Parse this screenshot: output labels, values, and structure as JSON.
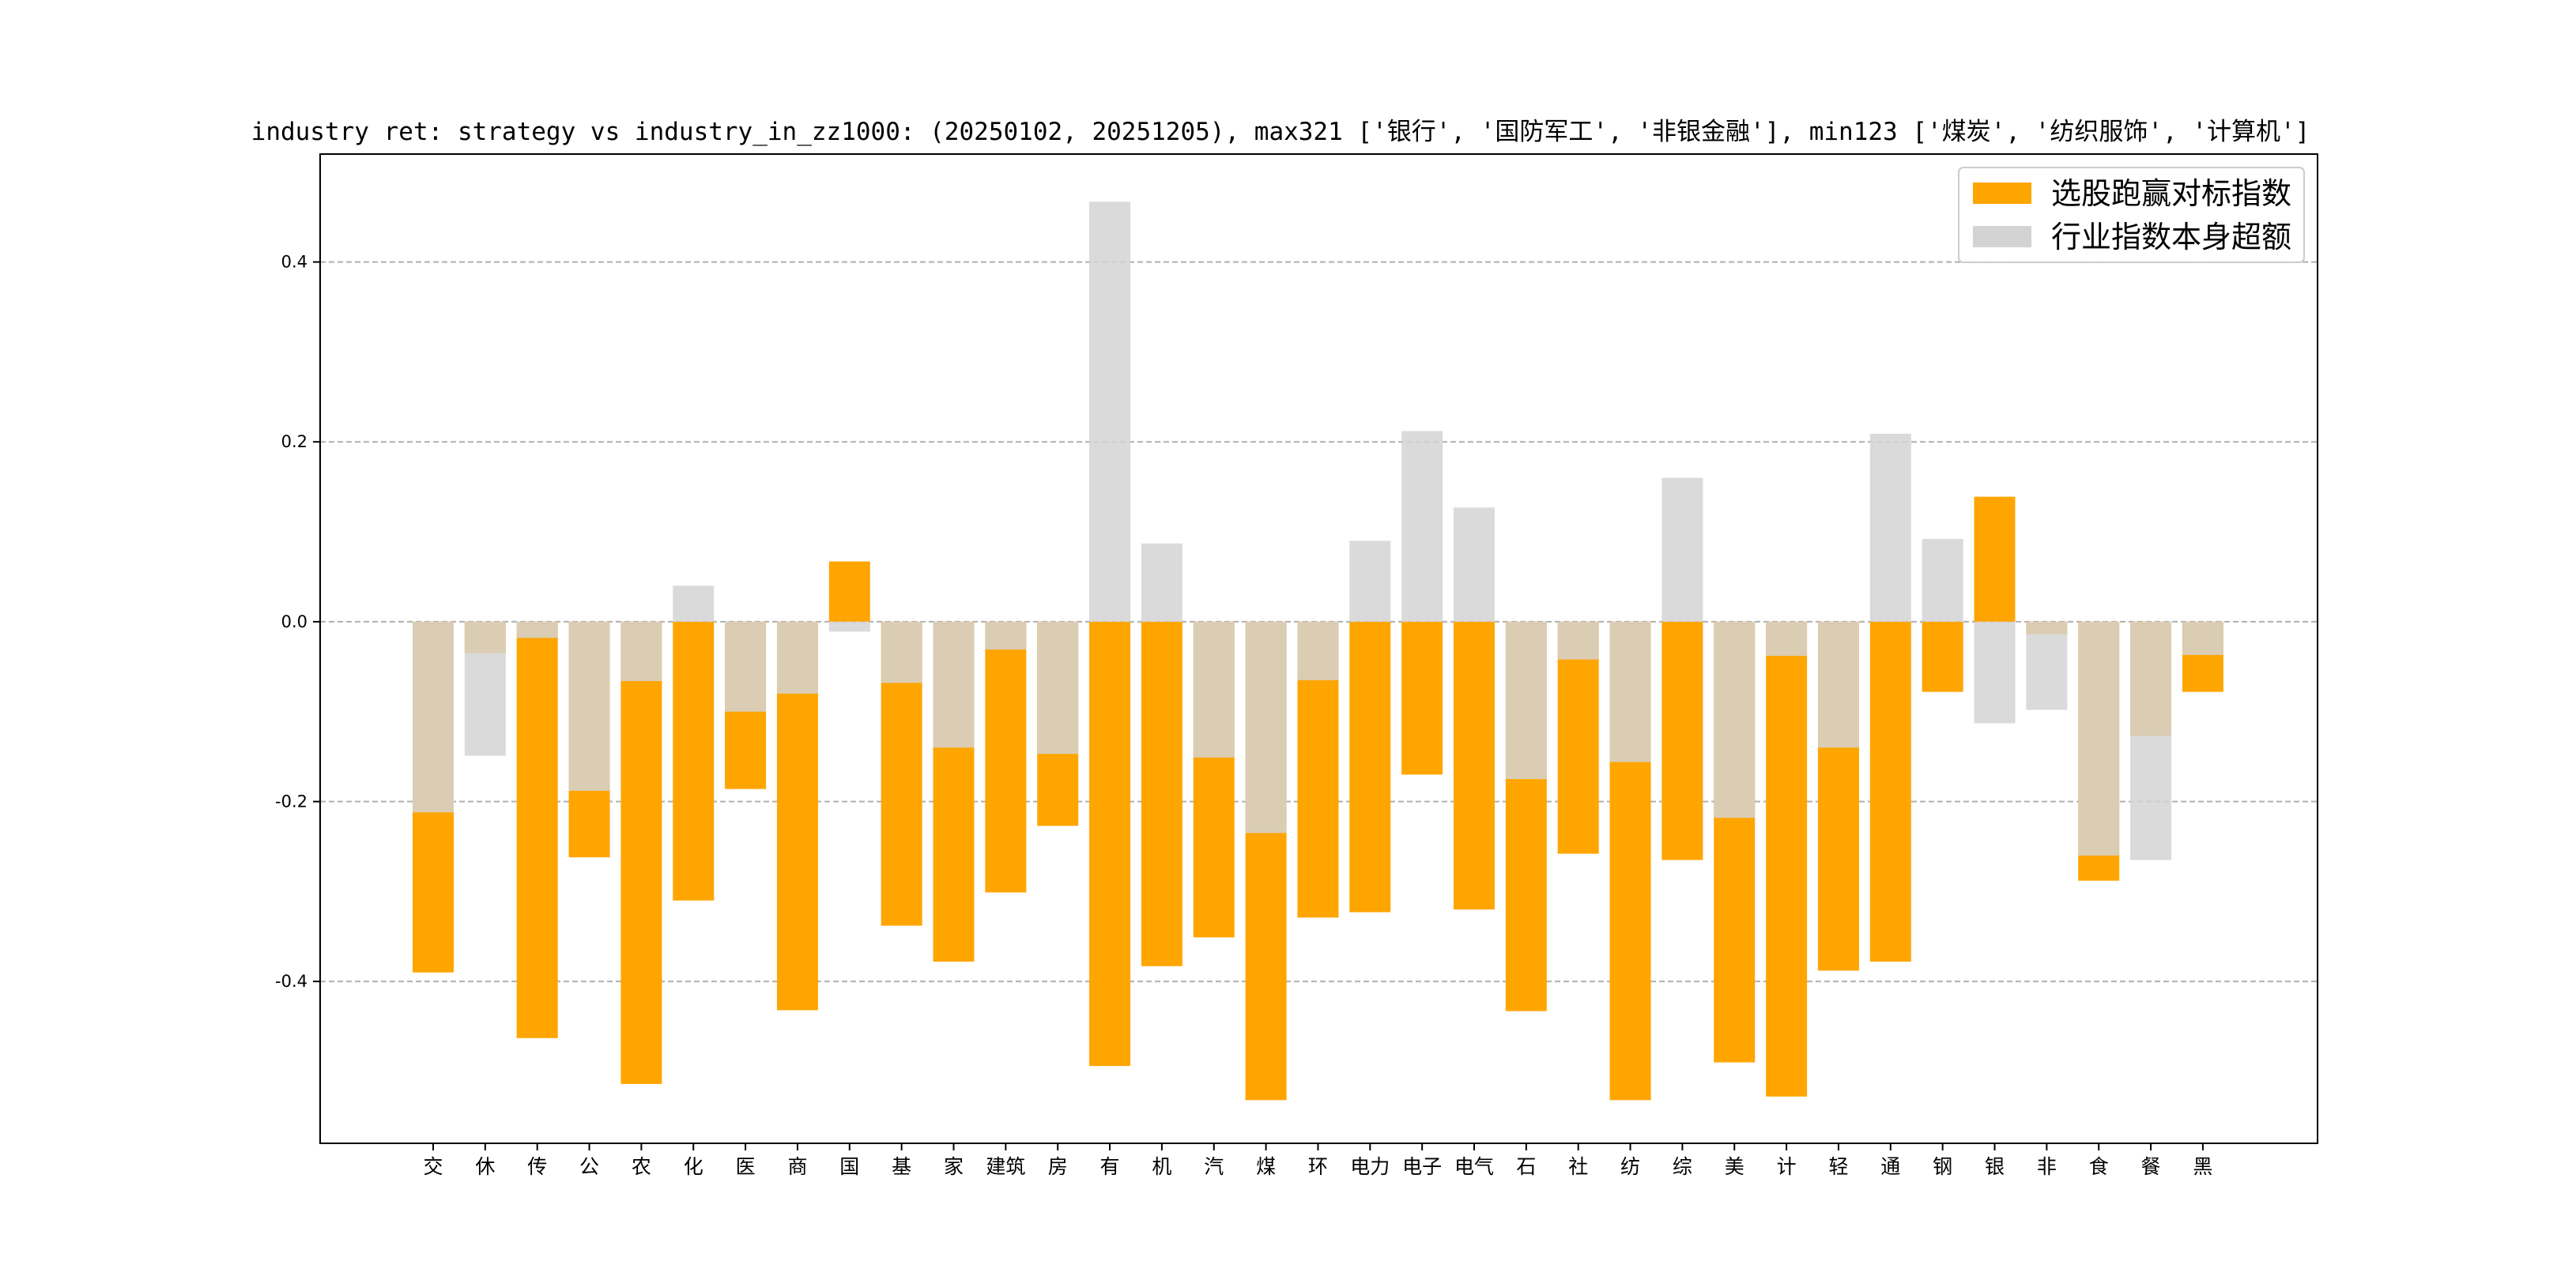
{
  "chart_data": {
    "type": "bar",
    "title": "industry ret: strategy vs industry_in_zz1000: (20250102, 20251205), max321 ['银行', '国防军工', '非银金融'], min123 ['煤炭', '纺织服饰', '计算机']",
    "xlabel": "",
    "ylabel": "",
    "ylim": [
      -0.58,
      0.52
    ],
    "yticks": [
      -0.4,
      -0.2,
      0.0,
      0.2,
      0.4
    ],
    "ytick_labels": [
      "-0.4",
      "-0.2",
      "0.0",
      "0.2",
      "0.4"
    ],
    "grid": "y-dashed",
    "legend_position": "upper-right",
    "categories": [
      "交",
      "休",
      "传",
      "公",
      "农",
      "化",
      "医",
      "商",
      "国",
      "基",
      "家",
      "建筑",
      "房",
      "有",
      "机",
      "汽",
      "煤",
      "环",
      "电力",
      "电子",
      "电气",
      "石",
      "社",
      "纺",
      "综",
      "美",
      "计",
      "轻",
      "通",
      "钢",
      "银",
      "非",
      "食",
      "餐",
      "黑"
    ],
    "series": [
      {
        "name": "选股跑赢对标指数",
        "color": "#FFA500",
        "values": [
          -0.39,
          -0.035,
          -0.463,
          -0.262,
          -0.514,
          -0.31,
          -0.186,
          -0.432,
          0.067,
          -0.338,
          -0.378,
          -0.301,
          -0.227,
          -0.494,
          -0.383,
          -0.351,
          -0.532,
          -0.329,
          -0.323,
          -0.17,
          -0.32,
          -0.433,
          -0.258,
          -0.532,
          -0.265,
          -0.49,
          -0.528,
          -0.388,
          -0.378,
          -0.078,
          0.139,
          -0.014,
          -0.288,
          -0.127,
          -0.078
        ]
      },
      {
        "name": "行业指数本身超额",
        "color": "#D3D3D3",
        "values": [
          -0.212,
          -0.149,
          -0.018,
          -0.188,
          -0.066,
          0.04,
          -0.1,
          -0.08,
          -0.011,
          -0.068,
          -0.14,
          -0.031,
          -0.147,
          0.467,
          0.087,
          -0.151,
          -0.235,
          -0.065,
          0.09,
          0.212,
          0.127,
          -0.175,
          -0.042,
          -0.156,
          0.16,
          -0.218,
          -0.038,
          -0.14,
          0.209,
          0.092,
          -0.113,
          -0.098,
          -0.26,
          -0.265,
          -0.037
        ]
      }
    ]
  }
}
